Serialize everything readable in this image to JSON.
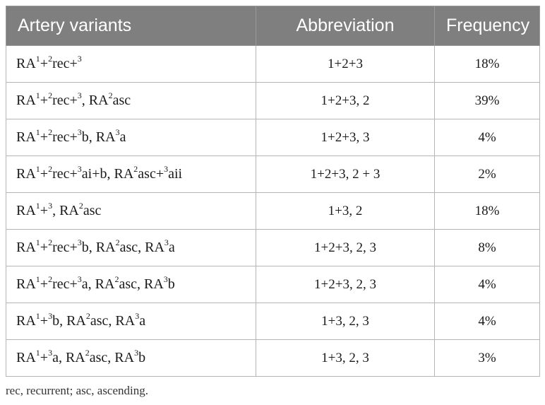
{
  "table": {
    "headers": [
      "Artery variants",
      "Abbreviation",
      "Frequency"
    ],
    "rows": [
      {
        "variant": [
          [
            "RA",
            ""
          ],
          [
            "1",
            "s"
          ],
          [
            "+",
            ""
          ],
          [
            "2",
            "s"
          ],
          [
            "rec+",
            ""
          ],
          [
            "3",
            "s"
          ]
        ],
        "abbreviation": "1+2+3",
        "frequency": "18%"
      },
      {
        "variant": [
          [
            "RA",
            ""
          ],
          [
            "1",
            "s"
          ],
          [
            "+",
            ""
          ],
          [
            "2",
            "s"
          ],
          [
            "rec+",
            ""
          ],
          [
            "3",
            "s"
          ],
          [
            ", RA",
            ""
          ],
          [
            "2",
            "s"
          ],
          [
            "asc",
            ""
          ]
        ],
        "abbreviation": "1+2+3, 2",
        "frequency": "39%"
      },
      {
        "variant": [
          [
            "RA",
            ""
          ],
          [
            "1",
            "s"
          ],
          [
            "+",
            ""
          ],
          [
            "2",
            "s"
          ],
          [
            "rec+",
            ""
          ],
          [
            "3",
            "s"
          ],
          [
            "b, RA",
            ""
          ],
          [
            "3",
            "s"
          ],
          [
            "a",
            ""
          ]
        ],
        "abbreviation": "1+2+3, 3",
        "frequency": "4%"
      },
      {
        "variant": [
          [
            "RA",
            ""
          ],
          [
            "1",
            "s"
          ],
          [
            "+",
            ""
          ],
          [
            "2",
            "s"
          ],
          [
            "rec+",
            ""
          ],
          [
            "3",
            "s"
          ],
          [
            "ai+b, RA",
            ""
          ],
          [
            "2",
            "s"
          ],
          [
            "asc+",
            ""
          ],
          [
            "3",
            "s"
          ],
          [
            "aii",
            ""
          ]
        ],
        "abbreviation": "1+2+3, 2 + 3",
        "frequency": "2%"
      },
      {
        "variant": [
          [
            "RA",
            ""
          ],
          [
            "1",
            "s"
          ],
          [
            "+",
            ""
          ],
          [
            "3",
            "s"
          ],
          [
            ", RA",
            ""
          ],
          [
            "2",
            "s"
          ],
          [
            "asc",
            ""
          ]
        ],
        "abbreviation": "1+3, 2",
        "frequency": "18%"
      },
      {
        "variant": [
          [
            "RA",
            ""
          ],
          [
            "1",
            "s"
          ],
          [
            "+",
            ""
          ],
          [
            "2",
            "s"
          ],
          [
            "rec+",
            ""
          ],
          [
            "3",
            "s"
          ],
          [
            "b, RA",
            ""
          ],
          [
            "2",
            "s"
          ],
          [
            "asc, RA",
            ""
          ],
          [
            "3",
            "s"
          ],
          [
            "a",
            ""
          ]
        ],
        "abbreviation": "1+2+3, 2, 3",
        "frequency": "8%"
      },
      {
        "variant": [
          [
            "RA",
            ""
          ],
          [
            "1",
            "s"
          ],
          [
            "+",
            ""
          ],
          [
            "2",
            "s"
          ],
          [
            "rec+",
            ""
          ],
          [
            "3",
            "s"
          ],
          [
            "a, RA",
            ""
          ],
          [
            "2",
            "s"
          ],
          [
            "asc, RA",
            ""
          ],
          [
            "3",
            "s"
          ],
          [
            "b",
            ""
          ]
        ],
        "abbreviation": "1+2+3, 2, 3",
        "frequency": "4%"
      },
      {
        "variant": [
          [
            "RA",
            ""
          ],
          [
            "1",
            "s"
          ],
          [
            "+",
            ""
          ],
          [
            "3",
            "s"
          ],
          [
            "b, RA",
            ""
          ],
          [
            "2",
            "s"
          ],
          [
            "asc, RA",
            ""
          ],
          [
            "3",
            "s"
          ],
          [
            "a",
            ""
          ]
        ],
        "abbreviation": "1+3, 2, 3",
        "frequency": "4%"
      },
      {
        "variant": [
          [
            "RA",
            ""
          ],
          [
            "1",
            "s"
          ],
          [
            "+",
            ""
          ],
          [
            "3",
            "s"
          ],
          [
            "a, RA",
            ""
          ],
          [
            "2",
            "s"
          ],
          [
            "asc, RA",
            ""
          ],
          [
            "3",
            "s"
          ],
          [
            "b",
            ""
          ]
        ],
        "abbreviation": "1+3, 2, 3",
        "frequency": "3%"
      }
    ]
  },
  "footnote": "rec, recurrent; asc, ascending.",
  "colors": {
    "header_bg": "#7f7f7f",
    "header_text": "#ffffff",
    "border": "#b5b5b5"
  }
}
